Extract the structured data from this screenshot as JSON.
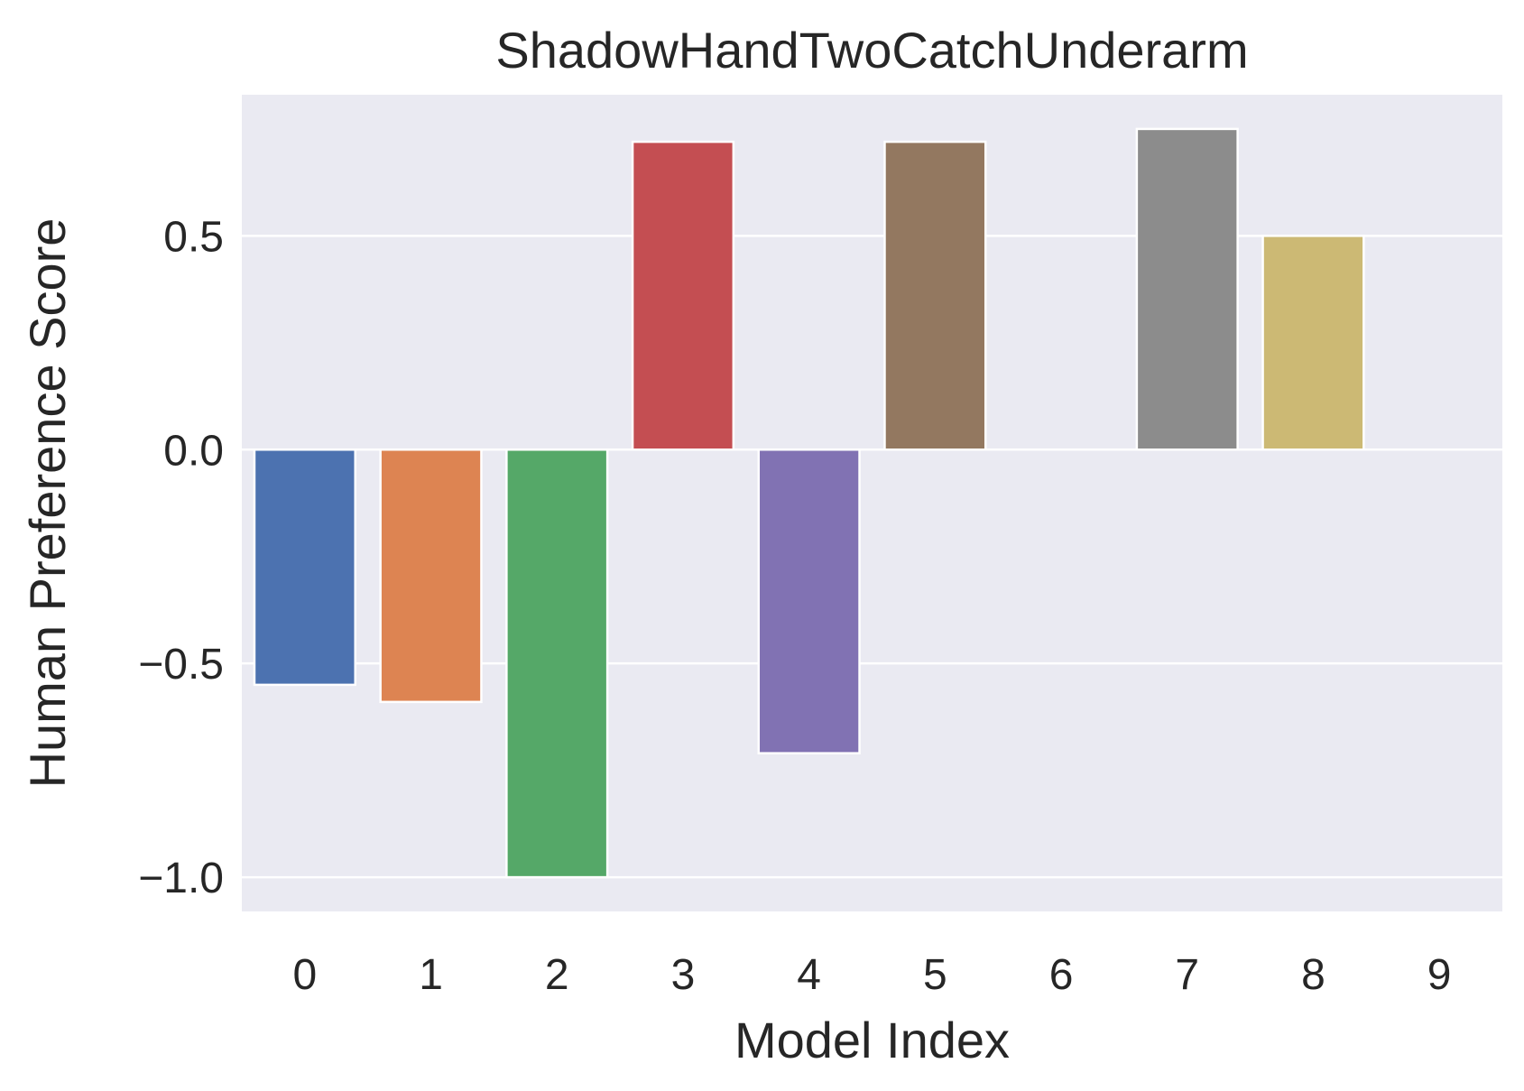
{
  "chart_data": {
    "type": "bar",
    "title": "ShadowHandTwoCatchUnderarm",
    "xlabel": "Model Index",
    "ylabel": "Human Preference Score",
    "categories": [
      "0",
      "1",
      "2",
      "3",
      "4",
      "5",
      "6",
      "7",
      "8",
      "9"
    ],
    "values": [
      -0.55,
      -0.59,
      -1.0,
      0.72,
      -0.71,
      0.72,
      0.0,
      0.75,
      0.5,
      0.0
    ],
    "yticks": [
      -1.0,
      -0.5,
      0.0,
      0.5
    ],
    "ytick_labels": [
      "−1.0",
      "−0.5",
      "0.0",
      "0.5"
    ],
    "ylim": [
      -1.08,
      0.83
    ],
    "grid": true,
    "colors": {
      "background": "#EAEAF2",
      "grid": "#FFFFFF",
      "bars": [
        "#4C72B0",
        "#DD8452",
        "#55A868",
        "#C44E52",
        "#8172B3",
        "#937860",
        "#DA8BC3",
        "#8C8C8C",
        "#CCB974",
        "#64B5CD"
      ]
    }
  }
}
